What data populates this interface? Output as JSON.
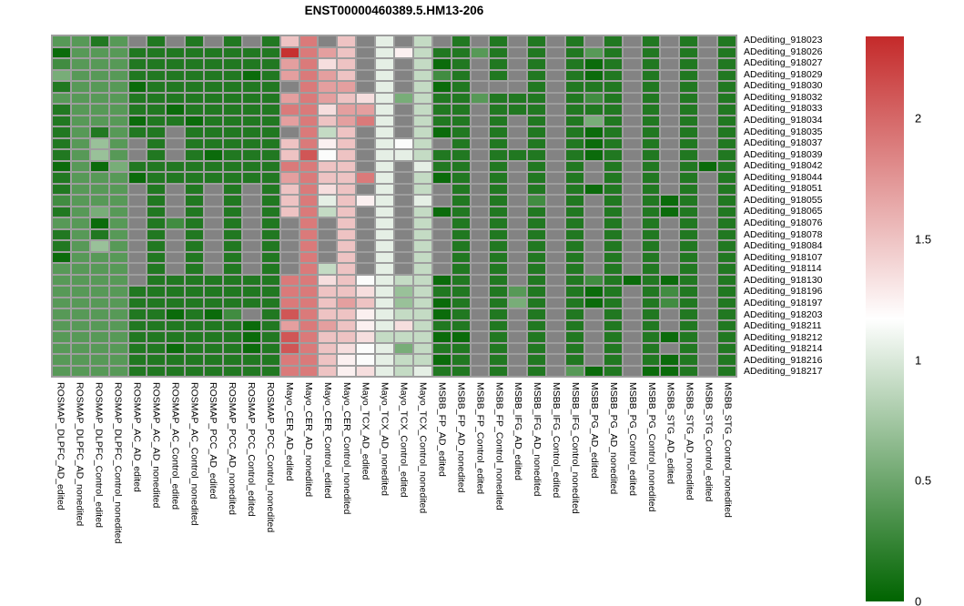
{
  "title": "ENST00000460389.5.HM13-206",
  "colors": {
    "na_cell": "#838383",
    "grid_background": "#9e9e9e",
    "scale_low": "#006400",
    "scale_mid": "#ffffff",
    "scale_high": "#c42a2a"
  },
  "chart_data": {
    "type": "heatmap",
    "title": "ENST00000460389.5.HM13-206",
    "legend_position": "right",
    "colorbar": {
      "min": 0,
      "max": 2.34,
      "mid_white": 1.17,
      "ticks": [
        "0",
        "0.5",
        "1",
        "1.5",
        "2"
      ],
      "tick_values": [
        0,
        0.5,
        1,
        1.5,
        2
      ]
    },
    "rows": [
      "ADediting_918023",
      "ADediting_918026",
      "ADediting_918027",
      "ADediting_918029",
      "ADediting_918030",
      "ADediting_918032",
      "ADediting_918033",
      "ADediting_918034",
      "ADediting_918035",
      "ADediting_918037",
      "ADediting_918039",
      "ADediting_918042",
      "ADediting_918044",
      "ADediting_918051",
      "ADediting_918055",
      "ADediting_918065",
      "ADediting_918076",
      "ADediting_918078",
      "ADediting_918084",
      "ADediting_918107",
      "ADediting_918114",
      "ADediting_918130",
      "ADediting_918196",
      "ADediting_918197",
      "ADediting_918203",
      "ADediting_918211",
      "ADediting_918212",
      "ADediting_918214",
      "ADediting_918216",
      "ADediting_918217"
    ],
    "columns": [
      "ROSMAP_DLPFC_AD_edited",
      "ROSMAP_DLPFC_AD_nonedited",
      "ROSMAP_DLPFC_Control_edited",
      "ROSMAP_DLPFC_Control_nonedited",
      "ROSMAP_AC_AD_edited",
      "ROSMAP_AC_AD_nonedited",
      "ROSMAP_AC_Control_edited",
      "ROSMAP_AC_Control_nonedited",
      "ROSMAP_PCC_AD_edited",
      "ROSMAP_PCC_AD_nonedited",
      "ROSMAP_PCC_Control_edited",
      "ROSMAP_PCC_Control_nonedited",
      "Mayo_CER_AD_edited",
      "Mayo_CER_AD_nonedited",
      "Mayo_CER_Control_edited",
      "Mayo_CER_Control_nonedited",
      "Mayo_TCX_AD_edited",
      "Mayo_TCX_AD_nonedited",
      "Mayo_TCX_Control_edited",
      "Mayo_TCX_Control_nonedited",
      "MSBB_FP_AD_edited",
      "MSBB_FP_AD_nonedited",
      "MSBB_FP_Control_edited",
      "MSBB_FP_Control_nonedited",
      "MSBB_IFG_AD_edited",
      "MSBB_IFG_AD_nonedited",
      "MSBB_IFG_Control_edited",
      "MSBB_IFG_Control_nonedited",
      "MSBB_PG_AD_edited",
      "MSBB_PG_AD_nonedited",
      "MSBB_PG_Control_edited",
      "MSBB_PG_Control_nonedited",
      "MSBB_STG_AD_edited",
      "MSBB_STG_AD_nonedited",
      "MSBB_STG_Control_edited",
      "MSBB_STG_Control_nonedited"
    ],
    "values": [
      [
        0.4,
        0.4,
        0.15,
        0.4,
        null,
        0.15,
        null,
        0.15,
        null,
        0.15,
        null,
        0.15,
        1.5,
        1.9,
        null,
        1.5,
        null,
        1.05,
        null,
        0.9,
        null,
        0.15,
        null,
        0.15,
        null,
        0.15,
        null,
        0.15,
        null,
        0.15,
        null,
        0.15,
        null,
        0.15,
        null,
        0.15
      ],
      [
        0.05,
        0.4,
        0.4,
        0.4,
        0.15,
        0.15,
        0.15,
        0.15,
        0.15,
        0.15,
        0.15,
        0.15,
        2.3,
        1.9,
        1.7,
        1.5,
        null,
        1.05,
        1.25,
        0.9,
        0.15,
        0.15,
        0.4,
        0.15,
        null,
        0.15,
        null,
        0.15,
        0.4,
        0.15,
        null,
        0.15,
        null,
        0.15,
        null,
        0.15
      ],
      [
        0.3,
        0.4,
        0.4,
        0.4,
        0.15,
        0.15,
        0.15,
        0.15,
        0.15,
        0.15,
        0.15,
        0.15,
        1.7,
        1.9,
        1.35,
        1.5,
        null,
        1.05,
        null,
        0.9,
        0.05,
        0.15,
        null,
        0.15,
        null,
        0.15,
        null,
        0.15,
        0.05,
        0.15,
        null,
        0.15,
        null,
        0.15,
        null,
        0.15
      ],
      [
        0.55,
        0.4,
        0.4,
        0.4,
        0.15,
        0.15,
        0.15,
        0.15,
        0.15,
        0.15,
        0.05,
        0.15,
        1.7,
        1.9,
        1.7,
        1.5,
        null,
        1.05,
        null,
        0.9,
        0.3,
        0.15,
        null,
        0.15,
        null,
        0.15,
        null,
        0.15,
        0.05,
        0.15,
        null,
        0.15,
        null,
        0.15,
        null,
        0.15
      ],
      [
        0.15,
        0.4,
        0.4,
        0.4,
        0.05,
        0.15,
        0.15,
        0.15,
        0.15,
        0.15,
        0.15,
        0.15,
        null,
        1.9,
        1.7,
        1.7,
        null,
        1.05,
        null,
        0.9,
        0.05,
        0.15,
        null,
        null,
        null,
        0.15,
        null,
        0.15,
        0.15,
        0.15,
        null,
        0.15,
        null,
        0.15,
        null,
        0.15
      ],
      [
        0.4,
        0.4,
        0.4,
        0.4,
        0.15,
        0.15,
        0.15,
        0.15,
        0.15,
        0.15,
        0.15,
        0.15,
        1.7,
        1.9,
        1.7,
        1.5,
        1.35,
        1.05,
        0.55,
        0.9,
        0.15,
        0.15,
        0.4,
        0.15,
        0.15,
        0.15,
        null,
        0.15,
        0.3,
        0.15,
        null,
        0.15,
        null,
        0.15,
        null,
        0.15
      ],
      [
        0.15,
        0.4,
        0.4,
        0.4,
        0.15,
        0.15,
        0.05,
        0.15,
        0.15,
        0.15,
        0.15,
        0.15,
        1.9,
        1.9,
        1.35,
        1.7,
        1.7,
        1.05,
        null,
        0.9,
        0.15,
        0.15,
        null,
        0.15,
        0.15,
        0.15,
        null,
        0.15,
        0.15,
        0.15,
        null,
        0.15,
        null,
        0.15,
        null,
        0.15
      ],
      [
        0.15,
        0.4,
        0.4,
        0.4,
        0.05,
        0.15,
        0.15,
        0.05,
        0.15,
        0.15,
        0.15,
        0.15,
        1.7,
        1.9,
        1.5,
        1.7,
        1.9,
        1.05,
        null,
        0.9,
        0.15,
        0.15,
        null,
        0.15,
        null,
        0.15,
        null,
        0.15,
        0.55,
        0.15,
        null,
        0.15,
        null,
        0.15,
        null,
        0.15
      ],
      [
        0.15,
        0.4,
        0.15,
        0.4,
        0.15,
        0.15,
        null,
        0.15,
        0.15,
        0.15,
        0.15,
        0.15,
        null,
        1.9,
        0.9,
        1.5,
        null,
        1.05,
        null,
        0.9,
        0.05,
        0.15,
        null,
        0.15,
        null,
        0.15,
        null,
        0.15,
        0.05,
        0.15,
        null,
        0.15,
        null,
        0.15,
        null,
        0.15
      ],
      [
        0.15,
        0.4,
        0.7,
        0.4,
        null,
        0.15,
        null,
        0.15,
        0.15,
        0.15,
        0.15,
        0.15,
        1.5,
        1.9,
        1.25,
        1.5,
        null,
        1.05,
        1.15,
        0.9,
        null,
        0.15,
        null,
        0.15,
        null,
        0.15,
        null,
        0.15,
        0.05,
        0.15,
        null,
        0.15,
        null,
        0.15,
        null,
        0.15
      ],
      [
        0.15,
        0.4,
        0.7,
        0.4,
        null,
        0.15,
        null,
        0.15,
        0.05,
        0.15,
        0.15,
        0.15,
        1.5,
        2.1,
        1.15,
        1.5,
        null,
        1.05,
        1.05,
        0.9,
        0.15,
        0.15,
        null,
        0.15,
        0.15,
        0.15,
        null,
        0.15,
        0.05,
        0.15,
        null,
        0.15,
        null,
        0.15,
        null,
        0.15
      ],
      [
        0.05,
        0.4,
        0.05,
        0.55,
        0.15,
        0.15,
        0.15,
        0.15,
        0.15,
        0.15,
        0.15,
        0.15,
        1.9,
        1.9,
        1.5,
        1.5,
        null,
        1.05,
        null,
        1.05,
        0.15,
        0.15,
        null,
        0.15,
        null,
        0.15,
        null,
        0.15,
        null,
        0.15,
        null,
        0.15,
        null,
        0.15,
        0.05,
        0.15
      ],
      [
        0.15,
        0.4,
        0.4,
        0.4,
        0.05,
        0.15,
        0.15,
        0.15,
        0.15,
        0.15,
        0.15,
        0.15,
        1.7,
        1.9,
        1.5,
        1.5,
        1.9,
        1.05,
        null,
        0.9,
        0.05,
        0.15,
        null,
        0.15,
        null,
        0.15,
        null,
        0.15,
        null,
        0.15,
        null,
        0.15,
        null,
        0.15,
        null,
        0.15
      ],
      [
        0.15,
        0.4,
        0.4,
        0.4,
        null,
        0.15,
        null,
        0.15,
        null,
        0.15,
        null,
        0.15,
        1.5,
        1.9,
        1.35,
        1.5,
        null,
        1.05,
        null,
        0.9,
        null,
        0.15,
        null,
        0.15,
        null,
        0.15,
        null,
        0.15,
        0.05,
        0.15,
        null,
        0.15,
        null,
        0.15,
        null,
        0.15
      ],
      [
        0.3,
        0.4,
        0.4,
        0.4,
        null,
        0.15,
        null,
        0.15,
        null,
        0.15,
        null,
        0.15,
        1.5,
        1.9,
        1.05,
        1.5,
        1.25,
        1.05,
        null,
        1.05,
        null,
        0.15,
        null,
        0.15,
        null,
        0.3,
        null,
        0.15,
        null,
        0.15,
        null,
        0.15,
        0.05,
        0.15,
        null,
        0.15
      ],
      [
        0.15,
        0.4,
        0.55,
        0.4,
        null,
        0.15,
        null,
        0.15,
        null,
        0.15,
        null,
        0.15,
        1.5,
        1.9,
        0.9,
        1.5,
        null,
        1.05,
        null,
        0.9,
        0.05,
        0.15,
        null,
        0.15,
        null,
        0.15,
        null,
        0.15,
        null,
        0.15,
        null,
        0.15,
        0.05,
        0.15,
        null,
        0.15
      ],
      [
        0.4,
        0.4,
        0.05,
        0.4,
        null,
        0.15,
        0.3,
        0.15,
        null,
        0.15,
        null,
        0.15,
        null,
        1.9,
        null,
        1.5,
        null,
        1.05,
        null,
        0.9,
        null,
        0.15,
        null,
        0.15,
        null,
        0.15,
        null,
        0.15,
        null,
        0.15,
        null,
        0.15,
        null,
        0.15,
        null,
        0.15
      ],
      [
        0.15,
        0.4,
        0.15,
        0.4,
        null,
        0.15,
        null,
        0.15,
        null,
        0.15,
        null,
        0.15,
        null,
        1.9,
        null,
        1.5,
        null,
        1.05,
        null,
        0.9,
        null,
        0.15,
        null,
        0.15,
        null,
        0.15,
        null,
        0.15,
        null,
        0.15,
        null,
        0.15,
        null,
        0.15,
        null,
        0.15
      ],
      [
        0.15,
        0.4,
        0.7,
        0.4,
        null,
        0.15,
        null,
        0.15,
        null,
        0.15,
        null,
        0.15,
        null,
        1.9,
        null,
        1.5,
        null,
        1.05,
        null,
        0.9,
        null,
        0.15,
        null,
        0.15,
        null,
        0.15,
        null,
        0.15,
        null,
        0.15,
        null,
        0.15,
        null,
        0.15,
        null,
        0.15
      ],
      [
        0.05,
        0.4,
        0.4,
        0.4,
        null,
        0.15,
        null,
        0.15,
        null,
        0.15,
        null,
        0.15,
        null,
        1.9,
        null,
        1.5,
        null,
        1.05,
        null,
        0.9,
        null,
        0.15,
        null,
        0.15,
        null,
        0.15,
        null,
        0.15,
        null,
        0.15,
        null,
        0.15,
        null,
        0.15,
        null,
        0.15
      ],
      [
        0.4,
        0.4,
        0.4,
        0.4,
        null,
        0.15,
        null,
        0.15,
        null,
        0.15,
        null,
        0.15,
        null,
        1.9,
        0.9,
        1.5,
        null,
        1.05,
        null,
        0.9,
        null,
        0.15,
        null,
        0.15,
        null,
        0.15,
        null,
        0.15,
        null,
        0.15,
        null,
        0.15,
        null,
        0.15,
        null,
        0.15
      ],
      [
        0.4,
        0.4,
        0.4,
        0.4,
        null,
        0.15,
        0.15,
        0.15,
        0.15,
        0.15,
        0.15,
        0.15,
        1.9,
        1.9,
        1.35,
        1.5,
        1.15,
        1.05,
        0.9,
        0.9,
        0.05,
        0.15,
        null,
        0.15,
        null,
        0.15,
        null,
        0.15,
        0.3,
        0.15,
        0.05,
        0.15,
        0.05,
        0.15,
        null,
        0.15
      ],
      [
        0.4,
        0.4,
        0.4,
        0.4,
        0.15,
        0.15,
        0.15,
        0.15,
        0.15,
        0.15,
        0.15,
        0.15,
        1.9,
        1.9,
        1.5,
        1.5,
        1.35,
        1.05,
        0.7,
        0.9,
        0.15,
        0.15,
        null,
        0.15,
        0.4,
        0.15,
        null,
        0.15,
        0.05,
        0.15,
        null,
        0.15,
        0.3,
        0.15,
        null,
        0.15
      ],
      [
        0.4,
        0.4,
        0.4,
        0.4,
        0.15,
        0.15,
        0.15,
        0.15,
        0.15,
        0.15,
        0.15,
        0.15,
        1.9,
        1.9,
        1.5,
        1.7,
        1.5,
        1.05,
        0.7,
        0.9,
        0.05,
        0.15,
        null,
        0.15,
        0.55,
        0.15,
        null,
        0.15,
        0.05,
        0.15,
        null,
        0.15,
        0.3,
        0.15,
        null,
        0.15
      ],
      [
        0.4,
        0.4,
        0.4,
        0.4,
        0.15,
        0.15,
        0.05,
        0.15,
        0.05,
        0.3,
        null,
        0.15,
        2.1,
        1.9,
        1.5,
        1.5,
        1.25,
        1.05,
        0.9,
        0.9,
        0.05,
        0.15,
        null,
        0.15,
        null,
        0.15,
        null,
        0.15,
        null,
        0.15,
        null,
        0.15,
        null,
        0.15,
        null,
        0.15
      ],
      [
        0.4,
        0.4,
        0.4,
        0.4,
        0.15,
        0.15,
        0.15,
        0.15,
        0.15,
        0.15,
        0.05,
        0.15,
        1.7,
        1.9,
        1.7,
        1.5,
        1.25,
        1.05,
        1.35,
        0.9,
        0.15,
        0.15,
        null,
        0.15,
        null,
        0.15,
        null,
        0.15,
        null,
        0.15,
        null,
        0.15,
        null,
        0.15,
        null,
        0.15
      ],
      [
        0.4,
        0.4,
        0.4,
        0.4,
        0.15,
        0.15,
        0.15,
        0.15,
        0.15,
        0.15,
        0.05,
        0.15,
        2.1,
        1.9,
        1.5,
        1.5,
        1.35,
        0.9,
        0.9,
        0.9,
        0.05,
        0.05,
        null,
        0.15,
        null,
        0.15,
        null,
        0.15,
        null,
        0.15,
        null,
        0.15,
        0.05,
        0.15,
        null,
        0.15
      ],
      [
        0.4,
        0.4,
        0.4,
        0.4,
        0.15,
        0.15,
        0.05,
        0.15,
        0.15,
        0.15,
        0.05,
        0.15,
        2.1,
        1.9,
        1.5,
        1.35,
        1.15,
        1.05,
        0.55,
        0.9,
        0.15,
        0.15,
        null,
        0.15,
        null,
        0.15,
        null,
        0.15,
        null,
        0.15,
        null,
        0.15,
        null,
        0.15,
        null,
        0.15
      ],
      [
        0.4,
        0.4,
        0.4,
        0.4,
        0.15,
        0.15,
        0.15,
        0.15,
        0.15,
        0.15,
        0.15,
        0.15,
        1.9,
        1.9,
        1.5,
        1.25,
        1.15,
        1.05,
        0.9,
        0.9,
        0.05,
        0.15,
        null,
        0.15,
        null,
        0.15,
        null,
        0.15,
        null,
        0.15,
        null,
        0.15,
        0.05,
        0.15,
        null,
        0.15
      ],
      [
        0.4,
        0.4,
        0.4,
        0.4,
        0.15,
        0.15,
        0.15,
        0.15,
        0.15,
        0.15,
        0.15,
        0.15,
        1.9,
        1.9,
        1.5,
        1.25,
        1.35,
        1.05,
        0.9,
        1.05,
        0.15,
        0.15,
        null,
        0.15,
        null,
        0.15,
        null,
        0.4,
        0.05,
        0.15,
        null,
        0.05,
        0.05,
        0.15,
        null,
        0.15
      ]
    ]
  }
}
